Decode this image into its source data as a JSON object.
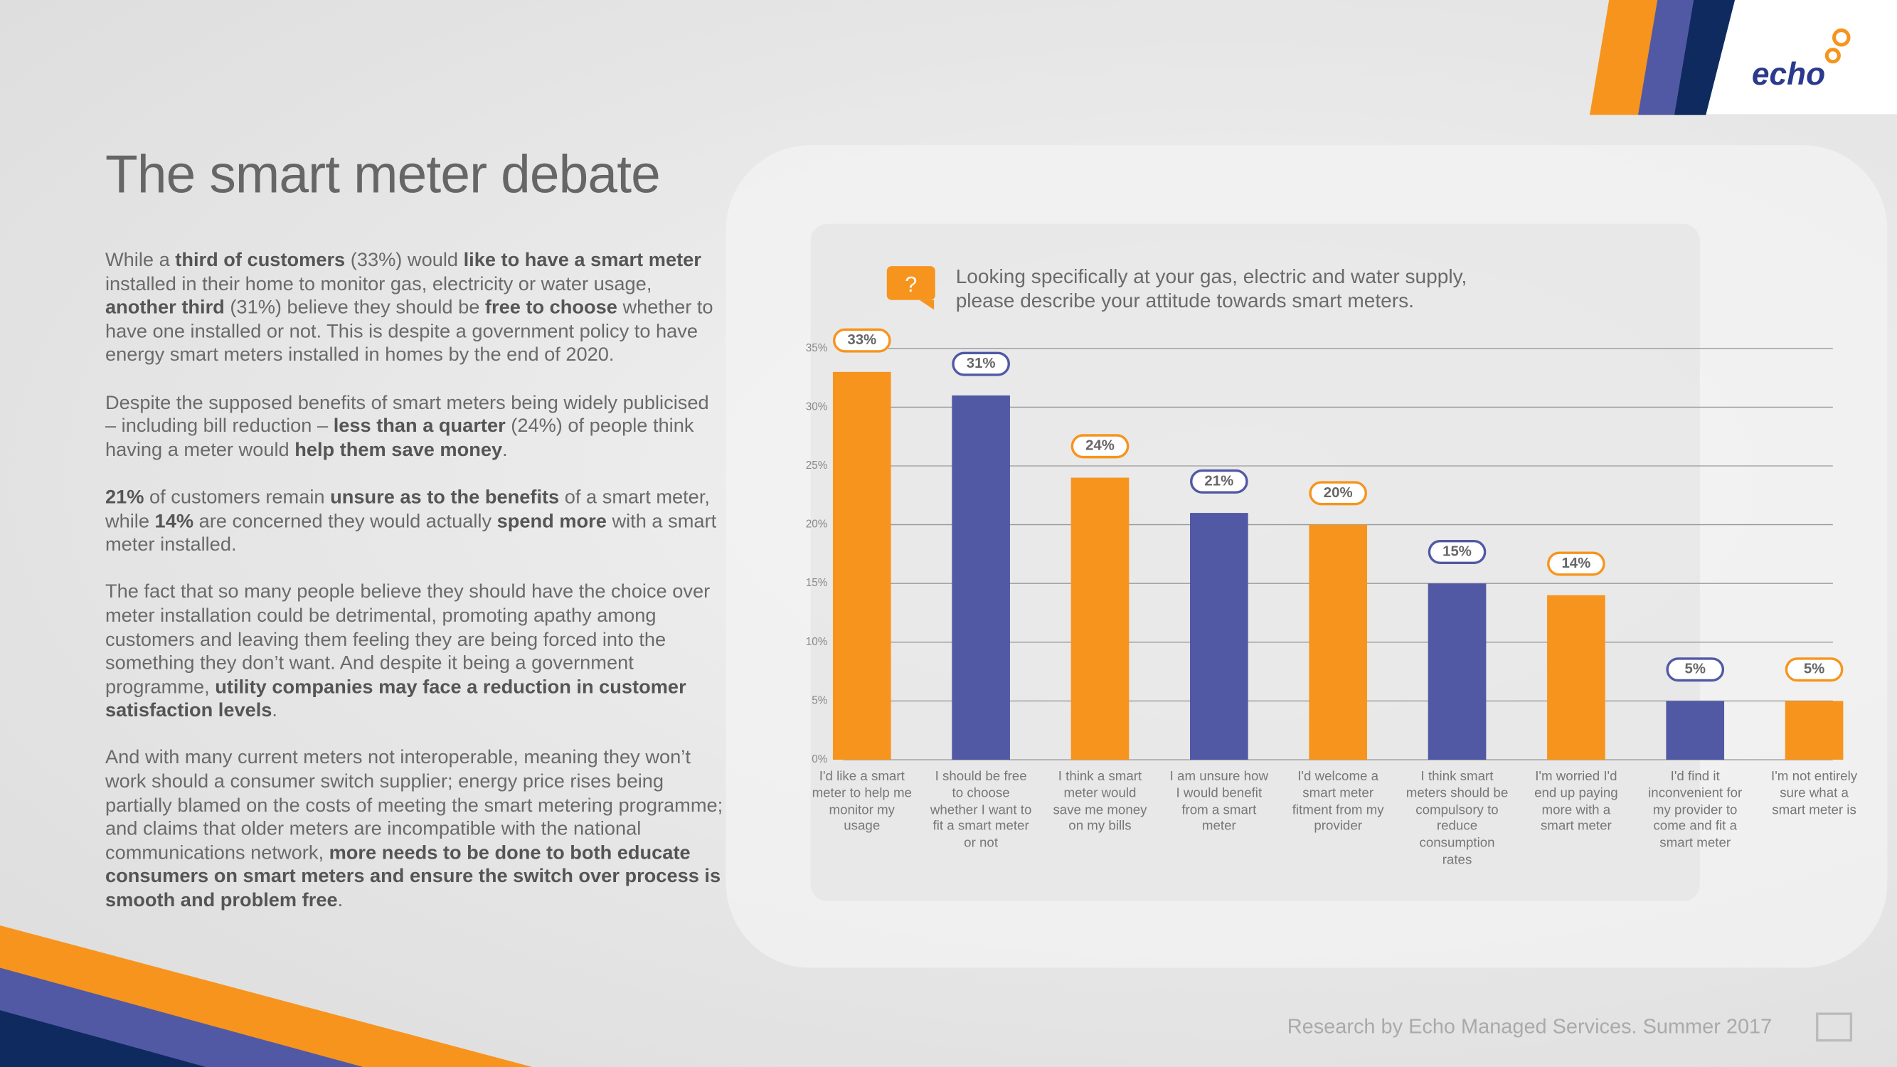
{
  "title": "The smart meter debate",
  "logo": "echo",
  "paragraphs": [
    [
      {
        "text": "While a "
      },
      {
        "text": "third of customers",
        "bold": true
      },
      {
        "text": " (33%) would "
      },
      {
        "text": "like to have a smart meter",
        "bold": true
      },
      {
        "text": " installed in their home to monitor gas, electricity or water usage, "
      },
      {
        "text": "another third",
        "bold": true
      },
      {
        "text": " (31%) believe they should be "
      },
      {
        "text": "free to choose",
        "bold": true
      },
      {
        "text": " whether to have one installed or not.  This is despite a government policy to have energy smart meters installed in homes by the end of 2020."
      }
    ],
    [
      {
        "text": "Despite the supposed benefits of smart meters being widely publicised – including bill reduction – "
      },
      {
        "text": "less than a quarter",
        "bold": true
      },
      {
        "text": " (24%) of people think having a meter would "
      },
      {
        "text": "help them save money",
        "bold": true
      },
      {
        "text": "."
      }
    ],
    [
      {
        "text": "21%",
        "bold": true
      },
      {
        "text": " of customers remain "
      },
      {
        "text": "unsure as to the benefits",
        "bold": true
      },
      {
        "text": " of a smart meter, while "
      },
      {
        "text": "14%",
        "bold": true
      },
      {
        "text": " are concerned they would actually "
      },
      {
        "text": "spend more",
        "bold": true
      },
      {
        "text": " with a smart meter installed."
      }
    ],
    [
      {
        "text": "The fact that so many people believe they should have the choice over meter installation could be detrimental, promoting apathy among customers and leaving them feeling they are being forced into the something they don’t want.  And despite it being a government programme, "
      },
      {
        "text": "utility companies may face a reduction in customer satisfaction levels",
        "bold": true
      },
      {
        "text": "."
      }
    ],
    [
      {
        "text": "And with many current meters not interoperable, meaning they won’t work should a consumer switch supplier; energy price rises being partially blamed on the costs of meeting the smart metering programme; and claims that older meters are incompatible with the national communications network, "
      },
      {
        "text": "more needs to be done to both educate consumers on smart meters and ensure the switch over process is smooth and problem free",
        "bold": true
      },
      {
        "text": "."
      }
    ]
  ],
  "footer": "Research by Echo Managed Services. Summer 2017",
  "chart_data": {
    "type": "bar",
    "title": "Looking specifically at your gas, electric and water supply, please describe your attitude towards smart meters.",
    "categories": [
      "I'd like a smart meter to help me monitor my usage",
      "I should be free to choose whether I want to fit a smart meter or not",
      "I think a smart meter would save me money on my bills",
      "I am unsure how I would benefit from a smart meter",
      "I'd welcome a smart meter fitment from my provider",
      "I think smart meters should be compulsory to reduce consumption rates",
      "I'm worried I'd end up paying more with a smart meter",
      "I'd find it inconvenient for my provider to come and fit a smart meter",
      "I'm not entirely sure what a smart meter is"
    ],
    "values": [
      33,
      31,
      24,
      21,
      20,
      15,
      14,
      5,
      5
    ],
    "value_labels": [
      "33%",
      "31%",
      "24%",
      "21%",
      "20%",
      "15%",
      "14%",
      "5%",
      "5%"
    ],
    "colors": [
      "#f7941d",
      "#5159a5",
      "#f7941d",
      "#5159a5",
      "#f7941d",
      "#5159a5",
      "#f7941d",
      "#5159a5",
      "#f7941d"
    ],
    "ylim": [
      0,
      35
    ],
    "yticks": [
      {
        "value": 0,
        "label": "0%"
      },
      {
        "value": 5,
        "label": "5%"
      },
      {
        "value": 10,
        "label": "10%"
      },
      {
        "value": 15,
        "label": "15%"
      },
      {
        "value": 20,
        "label": "20%"
      },
      {
        "value": 25,
        "label": "25%"
      },
      {
        "value": 30,
        "label": "30%"
      },
      {
        "value": 35,
        "label": "35%"
      }
    ],
    "grid": true
  }
}
